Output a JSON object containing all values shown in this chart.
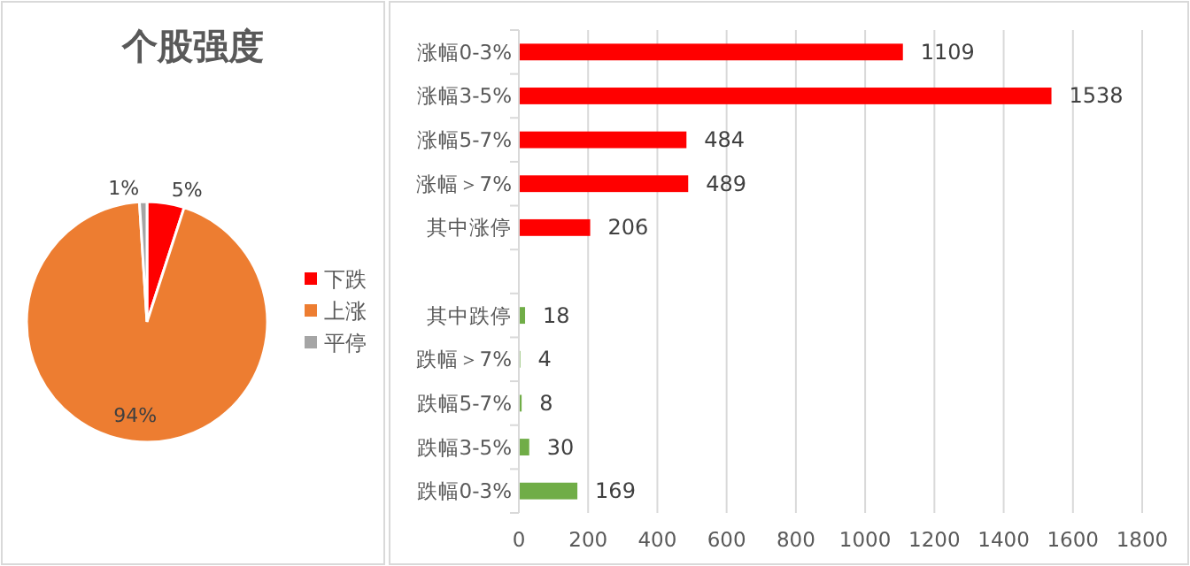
{
  "chart_data": [
    {
      "type": "pie",
      "title": "个股强度",
      "categories": [
        "下跌",
        "上涨",
        "平停"
      ],
      "values": [
        5,
        94,
        1
      ],
      "colors": [
        "#ff0000",
        "#ed7d31",
        "#a5a5a5"
      ],
      "value_labels": [
        "5%",
        "94%",
        "1%"
      ],
      "legend": "right"
    },
    {
      "type": "bar",
      "orientation": "horizontal",
      "categories": [
        "涨幅0-3%",
        "涨幅3-5%",
        "涨幅5-7%",
        "涨幅＞7%",
        "其中涨停",
        null,
        "其中跌停",
        "跌幅＞7%",
        "跌幅5-7%",
        "跌幅3-5%",
        "跌幅0-3%"
      ],
      "values": [
        1109,
        1538,
        484,
        489,
        206,
        null,
        18,
        4,
        8,
        30,
        169
      ],
      "colors": [
        "#ff0000",
        "#ff0000",
        "#ff0000",
        "#ff0000",
        "#ff0000",
        null,
        "#70ad47",
        "#70ad47",
        "#70ad47",
        "#70ad47",
        "#70ad47"
      ],
      "xlim": [
        0,
        1800
      ],
      "xticks": [
        0,
        200,
        400,
        600,
        800,
        1000,
        1200,
        1400,
        1600,
        1800
      ],
      "grid": "x",
      "data_labels": true
    }
  ]
}
